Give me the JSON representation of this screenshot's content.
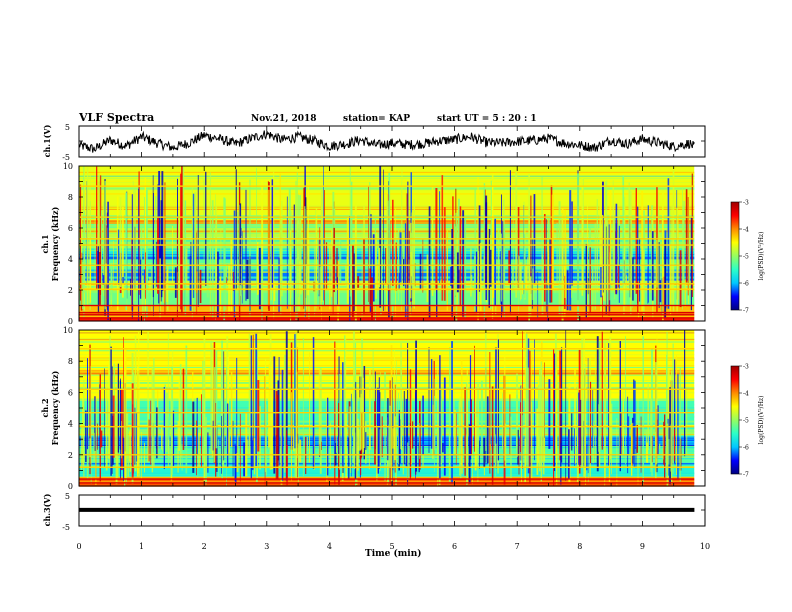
{
  "header": {
    "title": "VLF Spectra",
    "date": "Nov.21, 2018",
    "station": "station= KAP",
    "start_ut": "start  UT  =   5  : 20 : 1"
  },
  "chart_data": [
    {
      "type": "line",
      "panel": "ch1-waveform",
      "ylabel": "ch.1(V)",
      "ylim": [
        -5,
        5
      ],
      "ytick_labels": [
        "5",
        "-5"
      ],
      "x_range": [
        0,
        10
      ],
      "x_data_end": 9.83,
      "series": [
        {
          "color": "#000000",
          "x": [
            0,
            0.25,
            0.5,
            0.75,
            1,
            1.25,
            1.5,
            1.75,
            2,
            2.25,
            2.5,
            2.75,
            3,
            3.25,
            3.5,
            3.75,
            4,
            4.25,
            4.5,
            4.75,
            5,
            5.25,
            5.5,
            5.75,
            6,
            6.25,
            6.5,
            6.75,
            7,
            7.25,
            7.5,
            7.75,
            8,
            8.25,
            8.5,
            8.75,
            9,
            9.25,
            9.5,
            9.75,
            9.83
          ],
          "values": [
            -1.2,
            -2.5,
            0.5,
            -1.5,
            1.5,
            -0.5,
            -2.0,
            -0.5,
            2.0,
            0.8,
            -0.8,
            1.0,
            2.5,
            0.5,
            1.5,
            0.3,
            -1.5,
            -0.8,
            0.5,
            -1.2,
            -0.5,
            -1.0,
            -0.7,
            0.2,
            0.6,
            1.6,
            -0.3,
            -0.5,
            0.0,
            0.3,
            1.0,
            -0.5,
            -1.2,
            -2.0,
            0.5,
            -0.8,
            0.8,
            -0.4,
            -1.6,
            -0.6,
            -1.8
          ]
        }
      ]
    },
    {
      "type": "heatmap",
      "panel": "ch1-spectrogram",
      "ylabel": "ch.1\nFrequency (kHz)",
      "xlim": [
        0,
        10
      ],
      "ylim": [
        0,
        10
      ],
      "ytick_labels": [
        "0",
        "2",
        "4",
        "6",
        "8",
        "10"
      ],
      "colorbar": {
        "label": "log(PSD)(V²/Hz)",
        "range": [
          -7,
          -3
        ],
        "tick_labels": [
          "-3",
          "-4",
          "-5",
          "-6",
          "-7"
        ],
        "colormap": [
          "#00007f",
          "#0000ff",
          "#00c8ff",
          "#2cffc8",
          "#96ff60",
          "#ffff00",
          "#ff8c00",
          "#ff0000",
          "#a00000"
        ]
      },
      "background_level": -5.2,
      "frequency_bands": [
        {
          "from": 0,
          "to": 0.3,
          "level": -3.6
        },
        {
          "from": 0.3,
          "to": 0.7,
          "level": -3.9
        },
        {
          "from": 0.7,
          "to": 1.0,
          "level": -4.2
        },
        {
          "from": 1.0,
          "to": 2.0,
          "level": -5.2
        },
        {
          "from": 2.0,
          "to": 2.6,
          "level": -4.6
        },
        {
          "from": 2.6,
          "to": 3.2,
          "level": -6.2
        },
        {
          "from": 3.2,
          "to": 4.0,
          "level": -5.3
        },
        {
          "from": 4.0,
          "to": 4.6,
          "level": -5.8
        },
        {
          "from": 4.6,
          "to": 5.4,
          "level": -5.0
        },
        {
          "from": 5.4,
          "to": 6.2,
          "level": -4.8
        },
        {
          "from": 6.2,
          "to": 10.0,
          "level": -4.6
        }
      ],
      "steady_lines_khz": [
        0.2,
        0.4,
        0.55,
        1.0,
        2.05,
        2.4,
        3.6,
        4.9,
        5.3,
        6.7,
        8.7
      ]
    },
    {
      "type": "heatmap",
      "panel": "ch2-spectrogram",
      "ylabel": "ch.2\nFrequency (kHz)",
      "xlim": [
        0,
        10
      ],
      "ylim": [
        0,
        10
      ],
      "ytick_labels": [
        "0",
        "2",
        "4",
        "6",
        "8",
        "10"
      ],
      "colorbar": {
        "label": "log(PSD)(V²/Hz)",
        "range": [
          -7,
          -3
        ],
        "tick_labels": [
          "-3",
          "-4",
          "-5",
          "-6",
          "-7"
        ],
        "colormap": [
          "#00007f",
          "#0000ff",
          "#00c8ff",
          "#2cffc8",
          "#96ff60",
          "#ffff00",
          "#ff8c00",
          "#ff0000",
          "#a00000"
        ]
      },
      "background_level": -5.2,
      "frequency_bands": [
        {
          "from": 0,
          "to": 0.3,
          "level": -3.8
        },
        {
          "from": 0.3,
          "to": 0.6,
          "level": -4.2
        },
        {
          "from": 0.6,
          "to": 1.5,
          "level": -5.6
        },
        {
          "from": 1.5,
          "to": 2.6,
          "level": -5.3
        },
        {
          "from": 2.6,
          "to": 3.2,
          "level": -6.1
        },
        {
          "from": 3.2,
          "to": 4.0,
          "level": -5.0
        },
        {
          "from": 4.0,
          "to": 5.5,
          "level": -5.4
        },
        {
          "from": 5.5,
          "to": 10.0,
          "level": -4.5
        }
      ],
      "steady_lines_khz": [
        0.2,
        0.45,
        1.2,
        2.0,
        3.8,
        4.7,
        6.2,
        8.8
      ]
    },
    {
      "type": "line",
      "panel": "ch3-waveform",
      "ylabel": "ch.3(V)",
      "ylim": [
        -5,
        5
      ],
      "ytick_labels": [
        "5",
        "-5"
      ],
      "xlabel": "Time  (min)",
      "xlim": [
        0,
        10
      ],
      "xtick_labels": [
        "0",
        "1",
        "2",
        "3",
        "4",
        "5",
        "6",
        "7",
        "8",
        "9",
        "10"
      ],
      "x_data_end": 9.83,
      "series": [
        {
          "color": "#000000",
          "x": [
            0,
            9.83
          ],
          "values": [
            0.2,
            0.2
          ]
        }
      ]
    }
  ]
}
